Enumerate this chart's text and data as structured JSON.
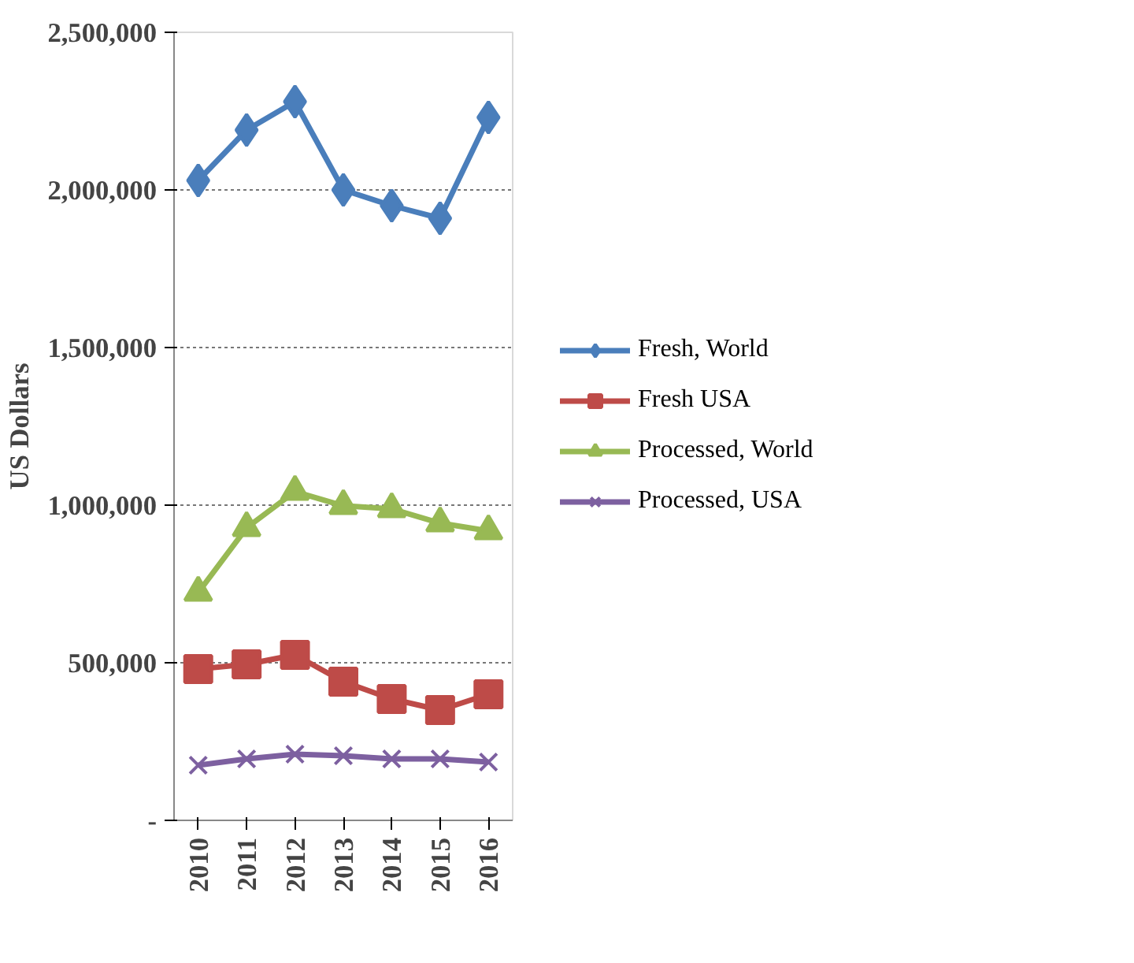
{
  "chart_data": {
    "type": "line",
    "ylabel": "US Dollars",
    "categories": [
      "2010",
      "2011",
      "2012",
      "2013",
      "2014",
      "2015",
      "2016"
    ],
    "series": [
      {
        "name": "Fresh, World",
        "color": "#4a7ebb",
        "marker": "diamond",
        "values": [
          2030000,
          2190000,
          2280000,
          2000000,
          1950000,
          1910000,
          2230000
        ]
      },
      {
        "name": "Fresh USA",
        "color": "#be4b48",
        "marker": "square",
        "values": [
          480000,
          495000,
          525000,
          440000,
          385000,
          350000,
          400000
        ]
      },
      {
        "name": "Processed, World",
        "color": "#98b954",
        "marker": "triangle",
        "values": [
          723000,
          928000,
          1043000,
          998000,
          988000,
          943000,
          918000
        ]
      },
      {
        "name": "Processed, USA",
        "color": "#7d60a0",
        "marker": "cross",
        "values": [
          175000,
          195000,
          210000,
          205000,
          195000,
          195000,
          185000
        ]
      }
    ],
    "ylim": [
      0,
      2500000
    ],
    "yticks": [
      {
        "value": 0,
        "label": "-"
      },
      {
        "value": 500000,
        "label": "500,000"
      },
      {
        "value": 1000000,
        "label": "1,000,000"
      },
      {
        "value": 1500000,
        "label": "1,500,000"
      },
      {
        "value": 2000000,
        "label": "2,000,000"
      },
      {
        "value": 2500000,
        "label": "2,500,000"
      }
    ],
    "grid": "y",
    "legend": "right",
    "line_style": "solid"
  }
}
